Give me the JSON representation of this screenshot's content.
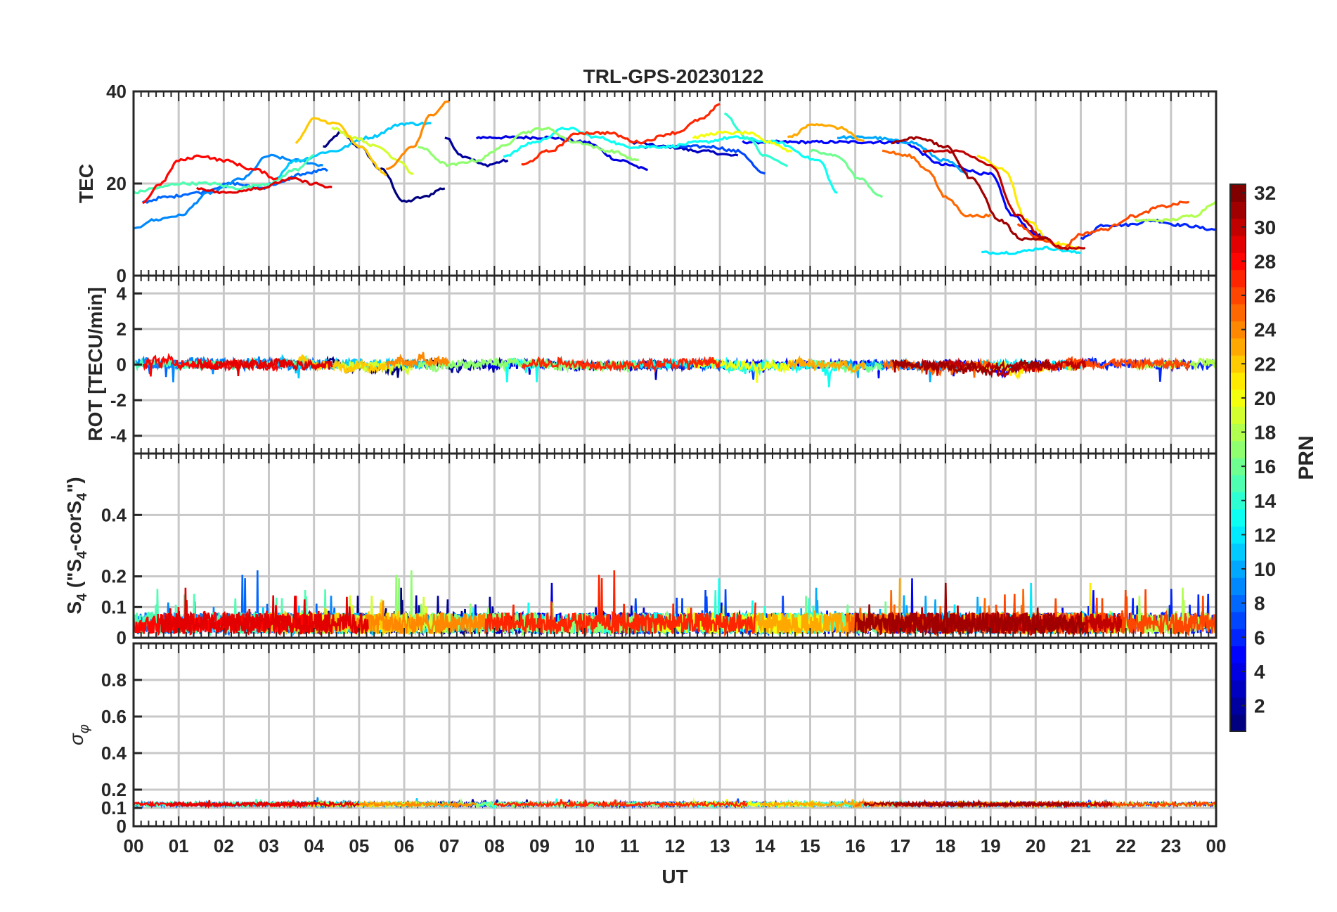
{
  "chart_data": {
    "type": "line",
    "title": "TRL-GPS-20230122",
    "xlabel": "UT",
    "x_range": [
      0,
      24
    ],
    "x_ticks": [
      "00",
      "01",
      "02",
      "03",
      "04",
      "05",
      "06",
      "07",
      "08",
      "09",
      "10",
      "11",
      "12",
      "13",
      "14",
      "15",
      "16",
      "17",
      "18",
      "19",
      "20",
      "21",
      "22",
      "23",
      "00"
    ],
    "colorbar": {
      "label": "PRN",
      "range": [
        1,
        32
      ],
      "ticks": [
        "2",
        "4",
        "6",
        "8",
        "10",
        "12",
        "14",
        "16",
        "18",
        "20",
        "22",
        "24",
        "26",
        "28",
        "30",
        "32"
      ],
      "colormap": "jet"
    },
    "panels": [
      {
        "id": "tec",
        "ylabel": "TEC",
        "ylim": [
          0,
          40
        ],
        "yticks": [
          "0",
          "20",
          "40"
        ],
        "series": [
          {
            "prn": 1,
            "x": [
              4.2,
              4.6,
              5.0,
              5.5,
              6.0,
              6.4,
              6.9
            ],
            "y": [
              28,
              31,
              28,
              23,
              16,
              17,
              19
            ]
          },
          {
            "prn": 2,
            "x": [
              6.9,
              7.3,
              7.8,
              8.3
            ],
            "y": [
              30,
              26,
              24,
              25
            ]
          },
          {
            "prn": 3,
            "x": [
              11.0,
              11.8,
              12.6,
              13.4
            ],
            "y": [
              29,
              28,
              27,
              26
            ]
          },
          {
            "prn": 4,
            "x": [
              7.6,
              8.4,
              9.2,
              10.0,
              10.8,
              11.4
            ],
            "y": [
              30,
              30,
              30,
              29,
              25,
              23
            ]
          },
          {
            "prn": 5,
            "x": [
              13.5,
              14.2,
              15.0,
              16.0,
              17.0,
              18.0,
              19.0,
              19.5,
              20.0,
              20.6
            ],
            "y": [
              29,
              29,
              29,
              29,
              29,
              24,
              22,
              13,
              9,
              6
            ]
          },
          {
            "prn": 6,
            "x": [
              21.0,
              21.5,
              22.0,
              22.6,
              23.2,
              24.0
            ],
            "y": [
              8,
              11,
              11,
              12,
              11,
              10
            ]
          },
          {
            "prn": 7,
            "x": [
              11.2,
              12.0,
              12.8,
              13.4,
              14.0
            ],
            "y": [
              28,
              28,
              28,
              27,
              22
            ]
          },
          {
            "prn": 8,
            "x": [
              0.2,
              0.7,
              1.4,
              2.2,
              2.8,
              3.2,
              3.7,
              4.3
            ],
            "y": [
              16,
              17,
              18,
              20,
              19,
              20,
              22,
              23
            ]
          },
          {
            "prn": 9,
            "x": [
              0.0,
              0.4,
              1.0,
              1.7,
              2.4,
              3.0,
              3.6,
              4.2
            ],
            "y": [
              10,
              12,
              13,
              18,
              21,
              26,
              25,
              24
            ]
          },
          {
            "prn": 10,
            "x": [
              15.6,
              16.3,
              17.2,
              18.0,
              18.5
            ],
            "y": [
              30,
              30,
              29,
              25,
              22
            ]
          },
          {
            "prn": 11,
            "x": [
              3.0,
              3.6,
              4.4,
              5.2,
              6.0,
              6.6
            ],
            "y": [
              20,
              25,
              27,
              30,
              33,
              33
            ]
          },
          {
            "prn": 12,
            "x": [
              18.8,
              19.5,
              20.2,
              21.0
            ],
            "y": [
              5,
              5,
              6,
              5
            ]
          },
          {
            "prn": 13,
            "x": [
              8.2,
              8.9,
              9.6,
              10.3,
              11.0,
              11.8,
              12.6,
              13.3,
              14.2,
              15.2,
              15.6
            ],
            "y": [
              26,
              29,
              32,
              30,
              28,
              28,
              29,
              30,
              29,
              25,
              18
            ]
          },
          {
            "prn": 14,
            "x": [
              13.1,
              13.6,
              14.0,
              14.5
            ],
            "y": [
              35,
              30,
              26,
              24
            ]
          },
          {
            "prn": 15,
            "x": [
              0.0,
              0.5,
              1.0,
              1.7,
              2.3,
              3.0,
              3.6,
              4.0
            ],
            "y": [
              18,
              19,
              20,
              20,
              19,
              20,
              23,
              26
            ]
          },
          {
            "prn": 16,
            "x": [
              15.0,
              15.6,
              16.1,
              16.6
            ],
            "y": [
              27,
              26,
              21,
              17
            ]
          },
          {
            "prn": 17,
            "x": [
              6.3,
              7.0,
              7.6,
              8.2,
              8.6,
              9.1,
              9.8,
              10.6,
              11.2
            ],
            "y": [
              28,
              24,
              25,
              28,
              31,
              32,
              29,
              27,
              25
            ]
          },
          {
            "prn": 18,
            "x": [
              22.2,
              22.9,
              23.5,
              24.0
            ],
            "y": [
              12,
              12,
              13,
              16
            ]
          },
          {
            "prn": 19,
            "x": [
              4.4,
              4.9,
              5.4,
              5.9,
              6.2
            ],
            "y": [
              32,
              30,
              28,
              25,
              22
            ]
          },
          {
            "prn": 20,
            "x": [
              12.4,
              13.0,
              13.6,
              14.1,
              14.6
            ],
            "y": [
              30,
              31,
              31,
              29,
              27
            ]
          },
          {
            "prn": 21,
            "x": [
              18.7,
              19.3,
              19.8,
              20.4,
              21.0
            ],
            "y": [
              26,
              23,
              12,
              7,
              6
            ]
          },
          {
            "prn": 22,
            "x": [
              3.6,
              4.0,
              4.5,
              5.0,
              5.6
            ],
            "y": [
              29,
              34,
              33,
              28,
              22
            ]
          },
          {
            "prn": 23,
            "x": [
              14.5,
              15.1,
              15.7,
              16.2
            ],
            "y": [
              30,
              33,
              32,
              29
            ]
          },
          {
            "prn": 24,
            "x": [
              5.6,
              6.2,
              6.6,
              7.0
            ],
            "y": [
              23,
              28,
              35,
              38
            ]
          },
          {
            "prn": 25,
            "x": [
              16.6,
              17.2,
              17.6,
              18.0,
              18.5,
              19.0
            ],
            "y": [
              27,
              26,
              23,
              17,
              13,
              13
            ]
          },
          {
            "prn": 26,
            "x": [
              19.6,
              20.1,
              20.6,
              21.0,
              21.5,
              22.2,
              22.8,
              23.4
            ],
            "y": [
              11,
              8,
              6,
              9,
              10,
              13,
              15,
              16
            ]
          },
          {
            "prn": 27,
            "x": [
              8.6,
              9.2,
              9.9,
              10.5,
              11.2,
              12.0,
              12.6,
              13.0
            ],
            "y": [
              24,
              27,
              31,
              31,
              29,
              31,
              34,
              37
            ]
          },
          {
            "prn": 28,
            "x": [
              0.2,
              0.6,
              1.0,
              1.5,
              2.0,
              2.7,
              3.2
            ],
            "y": [
              16,
              20,
              25,
              26,
              25,
              23,
              21
            ]
          },
          {
            "prn": 29,
            "x": [
              1.4,
              2.0,
              2.8,
              3.5,
              4.0,
              4.4
            ],
            "y": [
              19,
              18,
              19,
              21,
              20,
              19
            ]
          },
          {
            "prn": 30,
            "x": [
              17.5,
              18.3,
              19.0,
              19.6,
              20.2,
              20.6,
              21.1
            ],
            "y": [
              27,
              27,
              24,
              13,
              8,
              6,
              6
            ]
          },
          {
            "prn": 31,
            "x": [
              16.8,
              17.4,
              18.0,
              18.6,
              19.2,
              19.7,
              20.3
            ],
            "y": [
              29,
              30,
              28,
              21,
              12,
              8,
              8
            ]
          }
        ]
      },
      {
        "id": "rot",
        "ylabel": "ROT [TECU/min]",
        "ylim": [
          -5,
          5
        ],
        "yticks": [
          "-4",
          "-2",
          "0",
          "2",
          "4"
        ],
        "noise_amplitude": 0.25
      },
      {
        "id": "s4",
        "ylabel": "S4 (\"S4-corS4\")",
        "ylabel_parts": {
          "s": "S",
          "sub": "4",
          "mid1": " (\"S",
          "mid2": "-corS",
          "end": "\")"
        },
        "ylim": [
          0,
          0.6
        ],
        "yticks": [
          "0",
          "0.1",
          "0.2",
          "0.4"
        ],
        "baseline": 0.04,
        "noise_amplitude": 0.07,
        "peak_max": 0.22
      },
      {
        "id": "sigma_phi",
        "ylabel": "σφ",
        "ylabel_parts": {
          "main": "σ",
          "sub": "φ"
        },
        "ylim": [
          0,
          1
        ],
        "yticks": [
          "0",
          "0.1",
          "0.2",
          "0.4",
          "0.6",
          "0.8"
        ],
        "baseline": 0.12,
        "noise_amplitude": 0.02
      }
    ]
  }
}
